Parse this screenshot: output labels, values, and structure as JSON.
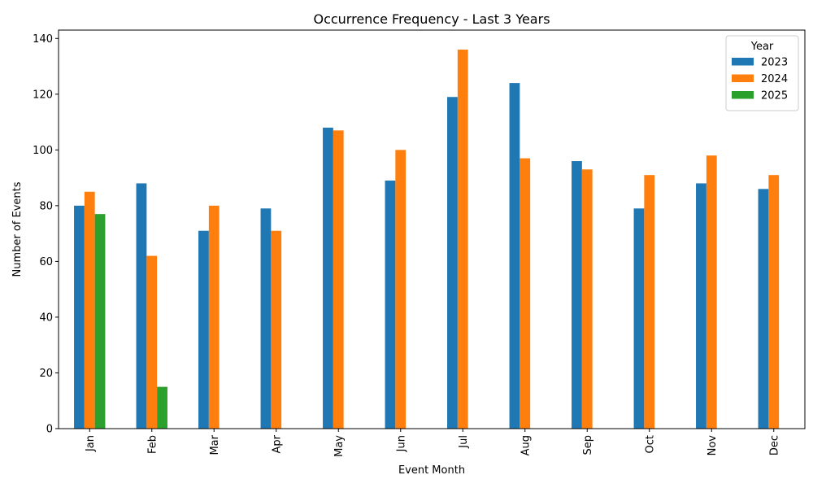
{
  "chart_data": {
    "type": "bar",
    "title": "Occurrence Frequency - Last 3 Years",
    "xlabel": "Event Month",
    "ylabel": "Number of Events",
    "categories": [
      "Jan",
      "Feb",
      "Mar",
      "Apr",
      "May",
      "Jun",
      "Jul",
      "Aug",
      "Sep",
      "Oct",
      "Nov",
      "Dec"
    ],
    "series": [
      {
        "name": "2023",
        "color": "#1f77b4",
        "values": [
          80,
          88,
          71,
          79,
          108,
          89,
          119,
          124,
          96,
          79,
          88,
          86
        ]
      },
      {
        "name": "2024",
        "color": "#ff7f0e",
        "values": [
          85,
          62,
          80,
          71,
          107,
          100,
          136,
          97,
          93,
          91,
          98,
          91
        ]
      },
      {
        "name": "2025",
        "color": "#2ca02c",
        "values": [
          77,
          15,
          null,
          null,
          null,
          null,
          null,
          null,
          null,
          null,
          null,
          null
        ]
      }
    ],
    "ylim": [
      0,
      143
    ],
    "yticks": [
      0,
      20,
      40,
      60,
      80,
      100,
      120,
      140
    ],
    "grid": false,
    "legend": {
      "title": "Year",
      "placement": "top-right"
    }
  }
}
